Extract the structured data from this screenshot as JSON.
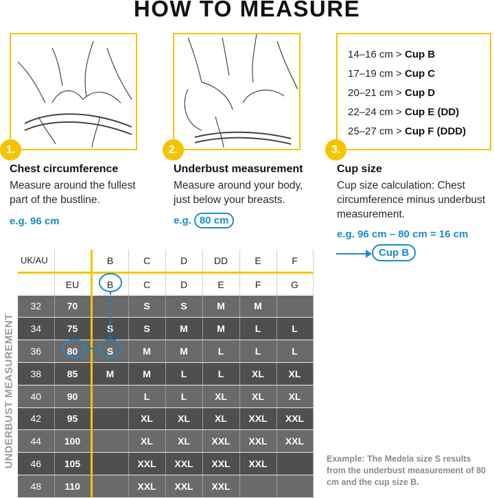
{
  "title": "HOW TO MEASURE",
  "steps": [
    {
      "num": "1.",
      "title": "Chest circumference",
      "text": "Measure around the fullest part of the bustline.",
      "eg_prefix": "e.g. 96 cm",
      "eg_value": ""
    },
    {
      "num": "2.",
      "title": "Underbust measurement",
      "text": "Measure around your body, just below your breasts.",
      "eg_prefix": "e.g.",
      "eg_value": "80 cm"
    },
    {
      "num": "3.",
      "title": "Cup size",
      "text": "Cup size calculation: Chest circumference minus underbust measurement.",
      "eg_prefix": "e.g. 96 cm – 80 cm = 16 cm",
      "eg_value": ""
    }
  ],
  "cup_list": [
    {
      "range": "14–16 cm >",
      "cup": "Cup B"
    },
    {
      "range": "17–19 cm >",
      "cup": "Cup C"
    },
    {
      "range": "20–21 cm >",
      "cup": "Cup D"
    },
    {
      "range": "22–24 cm >",
      "cup": "Cup E (DD)"
    },
    {
      "range": "25–27 cm >",
      "cup": "Cup F (DDD)"
    }
  ],
  "cup_result": "Cup B",
  "table": {
    "corner": "UK/AU",
    "uk_cups": [
      "B",
      "C",
      "D",
      "DD",
      "E",
      "F"
    ],
    "eu_label": "EU",
    "eu_cups": [
      "B",
      "C",
      "D",
      "E",
      "F",
      "G"
    ],
    "rows": [
      {
        "uk": "32",
        "eu": "70",
        "sizes": [
          "",
          "S",
          "S",
          "M",
          "M",
          ""
        ]
      },
      {
        "uk": "34",
        "eu": "75",
        "sizes": [
          "S",
          "S",
          "M",
          "M",
          "L",
          "L"
        ]
      },
      {
        "uk": "36",
        "eu": "80",
        "sizes": [
          "S",
          "M",
          "M",
          "L",
          "L",
          "L"
        ]
      },
      {
        "uk": "38",
        "eu": "85",
        "sizes": [
          "M",
          "M",
          "L",
          "L",
          "XL",
          "XL"
        ]
      },
      {
        "uk": "40",
        "eu": "90",
        "sizes": [
          "",
          "L",
          "L",
          "XL",
          "XL",
          "XL"
        ]
      },
      {
        "uk": "42",
        "eu": "95",
        "sizes": [
          "",
          "XL",
          "XL",
          "XL",
          "XXL",
          "XXL"
        ]
      },
      {
        "uk": "44",
        "eu": "100",
        "sizes": [
          "",
          "XL",
          "XL",
          "XXL",
          "XXL",
          "XXL"
        ]
      },
      {
        "uk": "46",
        "eu": "105",
        "sizes": [
          "",
          "XXL",
          "XXL",
          "XXL",
          "XXL",
          ""
        ]
      },
      {
        "uk": "48",
        "eu": "110",
        "sizes": [
          "",
          "XXL",
          "XXL",
          "XXL",
          "",
          ""
        ]
      }
    ]
  },
  "vertical_label": "UNDERBUST MEASUREMENT",
  "note": "Example: The Medela size S results from the underbust measurement of 80 cm and the cup size B.",
  "colors": {
    "accent": "#f5c400",
    "blue": "#1a8cc8",
    "row_light": "#6a6a6a",
    "row_dark": "#4f4f4f"
  }
}
